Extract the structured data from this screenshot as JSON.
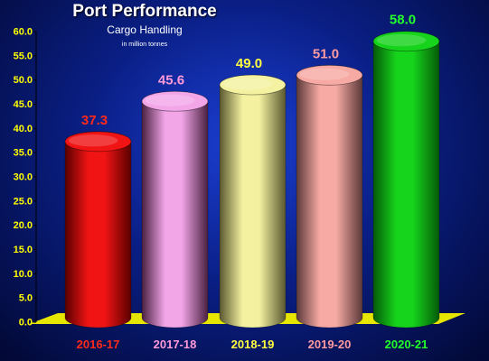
{
  "chart_data": {
    "type": "bar",
    "title": "Port Performance",
    "subtitle": "Cargo Handling",
    "unit_note": "in million tonnes",
    "categories": [
      "2016-17",
      "2017-18",
      "2018-19",
      "2019-20",
      "2020-21"
    ],
    "values": [
      37.3,
      45.6,
      49.0,
      51.0,
      58.0
    ],
    "value_labels": [
      "37.3",
      "45.6",
      "49.0",
      "51.0",
      "58.0"
    ],
    "ylim": [
      0,
      60
    ],
    "y_ticks": [
      "0.0",
      "5.0",
      "10.0",
      "15.0",
      "20.0",
      "25.0",
      "30.0",
      "35.0",
      "40.0",
      "45.0",
      "50.0",
      "55.0",
      "60.0"
    ],
    "xlabel": "",
    "ylabel": "",
    "legend": "none",
    "grid": false,
    "bar_style": "3d-cylinder",
    "colors": {
      "bars": [
        "#f01414",
        "#f2a6e8",
        "#f4f2a0",
        "#f7aaa4",
        "#16d41c"
      ],
      "bar_shades": [
        "#5a0000",
        "#4a2040",
        "#5a5830",
        "#5a3838",
        "#055a08"
      ],
      "value_labels": [
        "#ff2a1a",
        "#ff9ad8",
        "#ffff40",
        "#ff9aa0",
        "#22ff2a"
      ],
      "category_labels": [
        "#ff2a1a",
        "#ff9ad8",
        "#ffff40",
        "#ff9aa0",
        "#22ff2a"
      ],
      "floor": "#e6e600",
      "axis_text": "#ffff00",
      "title": "#ffffff"
    }
  }
}
